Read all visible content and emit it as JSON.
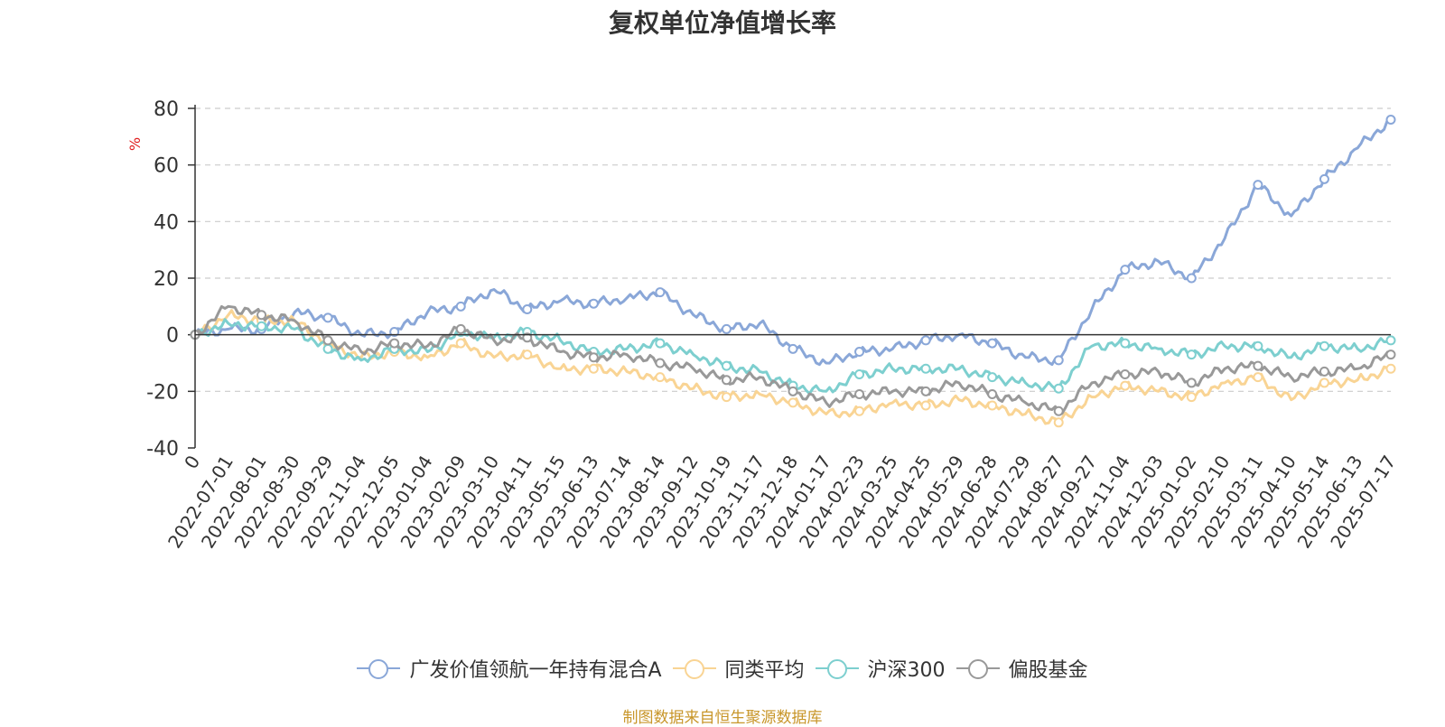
{
  "chart_data": {
    "type": "line",
    "title": "复权单位净值增长率",
    "y_unit": "%",
    "ylim": [
      -40,
      80
    ],
    "y_ticks": [
      80,
      60,
      40,
      20,
      0,
      -20,
      -40
    ],
    "grid": true,
    "legend_position": "bottom",
    "x_tick_labels": [
      "0",
      "2022-07-01",
      "2022-08-01",
      "2022-08-30",
      "2022-09-29",
      "2022-11-04",
      "2022-12-05",
      "2023-01-04",
      "2023-02-09",
      "2023-03-10",
      "2023-04-11",
      "2023-05-15",
      "2023-06-13",
      "2023-07-14",
      "2023-08-14",
      "2023-09-12",
      "2023-10-19",
      "2023-11-17",
      "2023-12-18",
      "2024-01-17",
      "2024-02-23",
      "2024-03-25",
      "2024-04-25",
      "2024-05-29",
      "2024-06-28",
      "2024-07-29",
      "2024-08-27",
      "2024-09-27",
      "2024-11-04",
      "2024-12-03",
      "2025-01-02",
      "2025-02-10",
      "2025-03-11",
      "2025-04-10",
      "2025-05-14",
      "2025-06-13",
      "2025-07-17"
    ],
    "series": [
      {
        "name": "广发价值领航一年持有混合A",
        "color": "#8aa7d8",
        "values": [
          0,
          2,
          2,
          8,
          6,
          0,
          1,
          8,
          10,
          16,
          9,
          12,
          11,
          13,
          15,
          7,
          2,
          4,
          -5,
          -10,
          -6,
          -5,
          -2,
          0,
          -3,
          -8,
          -9,
          9,
          23,
          26,
          20,
          34,
          53,
          42,
          55,
          66,
          76
        ]
      },
      {
        "name": "同类平均",
        "color": "#f9d494",
        "values": [
          0,
          7,
          5,
          5,
          -3,
          -8,
          -6,
          -8,
          -3,
          -8,
          -7,
          -12,
          -12,
          -13,
          -15,
          -19,
          -22,
          -21,
          -24,
          -28,
          -27,
          -24,
          -25,
          -23,
          -25,
          -28,
          -31,
          -22,
          -18,
          -20,
          -22,
          -17,
          -15,
          -23,
          -17,
          -16,
          -12
        ]
      },
      {
        "name": "沪深300",
        "color": "#7dcfcf",
        "values": [
          0,
          4,
          3,
          2,
          -5,
          -9,
          -5,
          -6,
          1,
          -1,
          1,
          -2,
          -6,
          -5,
          -3,
          -7,
          -11,
          -13,
          -18,
          -20,
          -14,
          -12,
          -12,
          -12,
          -15,
          -17,
          -19,
          -4,
          -3,
          -5,
          -7,
          -4,
          -4,
          -8,
          -4,
          -5,
          -2
        ]
      },
      {
        "name": "偏股基金",
        "color": "#999999",
        "values": [
          0,
          10,
          7,
          5,
          -2,
          -6,
          -3,
          -4,
          2,
          -2,
          -1,
          -6,
          -8,
          -7,
          -10,
          -12,
          -16,
          -15,
          -20,
          -24,
          -21,
          -20,
          -20,
          -17,
          -21,
          -24,
          -27,
          -17,
          -14,
          -13,
          -17,
          -12,
          -11,
          -15,
          -13,
          -12,
          -7
        ]
      }
    ]
  },
  "source_note": "制图数据来自恒生聚源数据库"
}
